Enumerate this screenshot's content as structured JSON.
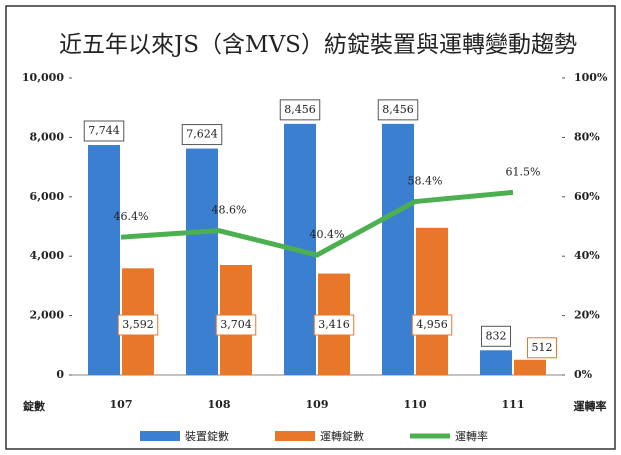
{
  "chart_data": {
    "type": "bar",
    "title": "近五年以來JS（含MVS）紡錠裝置與運轉變動趨勢",
    "ylabel": "錠數",
    "y2label": "運轉率",
    "categories": [
      "107",
      "108",
      "109",
      "110",
      "111"
    ],
    "series": [
      {
        "name": "裝置錠數",
        "color": "#3b7fd1",
        "type": "bar",
        "values": [
          7744,
          7624,
          8456,
          8456,
          832
        ],
        "value_labels": [
          "7,744",
          "7,624",
          "8,456",
          "8,456",
          "832"
        ]
      },
      {
        "name": "運轉錠數",
        "color": "#e8772a",
        "type": "bar",
        "values": [
          3592,
          3704,
          3416,
          4956,
          512
        ],
        "value_labels": [
          "3,592",
          "3,704",
          "3,416",
          "4,956",
          "512"
        ]
      },
      {
        "name": "運轉率",
        "color": "#4caf50",
        "type": "line",
        "axis": "y2",
        "values": [
          46.4,
          48.6,
          40.4,
          58.4,
          61.5
        ],
        "value_labels": [
          "46.4%",
          "48.6%",
          "40.4%",
          "58.4%",
          "61.5%"
        ]
      }
    ],
    "ylim": [
      0,
      10000
    ],
    "yticks": [
      0,
      {
        "value": 2000,
        "label": "2,000"
      },
      {
        "value": 4000,
        "label": "4,000"
      },
      {
        "value": 6000,
        "label": "6,000"
      },
      {
        "value": 8000,
        "label": "8,000"
      },
      {
        "value": 10000,
        "label": "10,000"
      }
    ],
    "y2lim": [
      0,
      100
    ],
    "y2ticks": [
      {
        "value": 0,
        "label": "0%"
      },
      {
        "value": 20,
        "label": "20%"
      },
      {
        "value": 40,
        "label": "40%"
      },
      {
        "value": 60,
        "label": "60%"
      },
      {
        "value": 80,
        "label": "80%"
      },
      {
        "value": 100,
        "label": "100%"
      }
    ],
    "legend": "bottom"
  }
}
